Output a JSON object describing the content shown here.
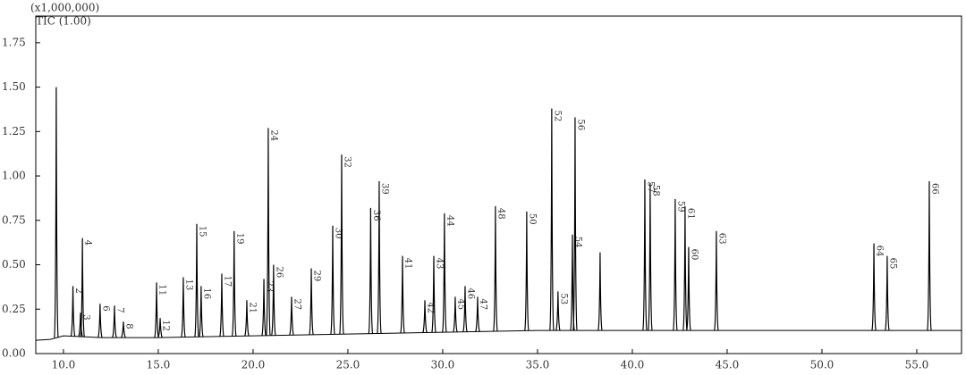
{
  "chart_data": {
    "type": "chromatogram",
    "y_unit": "(x1,000,000)",
    "trace_name": "TIC (1.00)",
    "xlim": [
      8.54,
      57.36
    ],
    "ylim": [
      0,
      1.9
    ],
    "xticks": [
      {
        "value": 10,
        "label": "10.0"
      },
      {
        "value": 15,
        "label": "15.0"
      },
      {
        "value": 20,
        "label": "20.0"
      },
      {
        "value": 25,
        "label": "25.0"
      },
      {
        "value": 30,
        "label": "30.0"
      },
      {
        "value": 35,
        "label": "35.0"
      },
      {
        "value": 40,
        "label": "40.0"
      },
      {
        "value": 45,
        "label": "45.0"
      },
      {
        "value": 50,
        "label": "50.0"
      },
      {
        "value": 55,
        "label": "55.0"
      }
    ],
    "yticks": [
      {
        "value": 0,
        "label": "0.00"
      },
      {
        "value": 0.25,
        "label": "0.25"
      },
      {
        "value": 0.5,
        "label": "0.50"
      },
      {
        "value": 0.75,
        "label": "0.75"
      },
      {
        "value": 1,
        "label": "1.00"
      },
      {
        "value": 1.25,
        "label": "1.25"
      },
      {
        "value": 1.5,
        "label": "1.50"
      },
      {
        "value": 1.75,
        "label": "1.75"
      }
    ],
    "color": "#000000",
    "baseline": {
      "x": [
        8.54,
        9.3,
        10,
        12,
        15,
        20,
        25,
        30,
        35,
        40,
        45,
        50,
        57.36
      ],
      "values": [
        0.075,
        0.08,
        0.1,
        0.09,
        0.09,
        0.1,
        0.11,
        0.12,
        0.13,
        0.13,
        0.13,
        0.13,
        0.13
      ]
    },
    "peaks": [
      {
        "rt": 9.62,
        "height": 1.5
      },
      {
        "rt": 10.5,
        "height": 0.38,
        "label": "2"
      },
      {
        "rt": 10.9,
        "height": 0.23,
        "label": "3"
      },
      {
        "rt": 11.0,
        "height": 0.65,
        "label": "4"
      },
      {
        "rt": 11.93,
        "height": 0.28,
        "label": "6"
      },
      {
        "rt": 12.69,
        "height": 0.27,
        "label": "7"
      },
      {
        "rt": 13.16,
        "height": 0.18,
        "label": "8"
      },
      {
        "rt": 14.91,
        "height": 0.4,
        "label": "11"
      },
      {
        "rt": 15.1,
        "height": 0.2,
        "label": "12"
      },
      {
        "rt": 16.32,
        "height": 0.43,
        "label": "13"
      },
      {
        "rt": 17.03,
        "height": 0.73,
        "label": "15"
      },
      {
        "rt": 17.26,
        "height": 0.38,
        "label": "16"
      },
      {
        "rt": 18.35,
        "height": 0.45,
        "label": "17"
      },
      {
        "rt": 19.0,
        "height": 0.69,
        "label": "19"
      },
      {
        "rt": 19.67,
        "height": 0.3,
        "label": "21"
      },
      {
        "rt": 20.57,
        "height": 0.42,
        "label": "23"
      },
      {
        "rt": 20.8,
        "height": 1.27,
        "label": "24"
      },
      {
        "rt": 21.08,
        "height": 0.5,
        "label": "26"
      },
      {
        "rt": 22.03,
        "height": 0.32,
        "label": "27"
      },
      {
        "rt": 23.07,
        "height": 0.48,
        "label": "29"
      },
      {
        "rt": 24.2,
        "height": 0.72,
        "label": "30"
      },
      {
        "rt": 24.67,
        "height": 1.12,
        "label": "32"
      },
      {
        "rt": 26.2,
        "height": 0.82,
        "label": "36"
      },
      {
        "rt": 26.65,
        "height": 0.97,
        "label": "39"
      },
      {
        "rt": 27.88,
        "height": 0.55,
        "label": "41"
      },
      {
        "rt": 29.06,
        "height": 0.3,
        "label": "42"
      },
      {
        "rt": 29.53,
        "height": 0.55,
        "label": "43"
      },
      {
        "rt": 30.09,
        "height": 0.79,
        "label": "44"
      },
      {
        "rt": 30.66,
        "height": 0.32,
        "label": "45"
      },
      {
        "rt": 31.18,
        "height": 0.38,
        "label": "46"
      },
      {
        "rt": 31.84,
        "height": 0.32,
        "label": "47"
      },
      {
        "rt": 32.78,
        "height": 0.83,
        "label": "48"
      },
      {
        "rt": 34.43,
        "height": 0.8,
        "label": "50"
      },
      {
        "rt": 35.75,
        "height": 1.38,
        "label": "52"
      },
      {
        "rt": 36.08,
        "height": 0.35,
        "label": "53"
      },
      {
        "rt": 36.84,
        "height": 0.67,
        "label": "54"
      },
      {
        "rt": 36.98,
        "height": 1.33,
        "label": "56"
      },
      {
        "rt": 38.3,
        "height": 0.57
      },
      {
        "rt": 40.66,
        "height": 0.98,
        "label": "57"
      },
      {
        "rt": 40.94,
        "height": 0.96,
        "label": "58"
      },
      {
        "rt": 42.26,
        "height": 0.87,
        "label": "59"
      },
      {
        "rt": 42.78,
        "height": 0.83,
        "label": "61"
      },
      {
        "rt": 42.97,
        "height": 0.6,
        "label": "60"
      },
      {
        "rt": 44.43,
        "height": 0.69,
        "label": "63"
      },
      {
        "rt": 52.74,
        "height": 0.62,
        "label": "64"
      },
      {
        "rt": 53.44,
        "height": 0.55,
        "label": "65"
      },
      {
        "rt": 55.66,
        "height": 0.97,
        "label": "66"
      }
    ]
  }
}
